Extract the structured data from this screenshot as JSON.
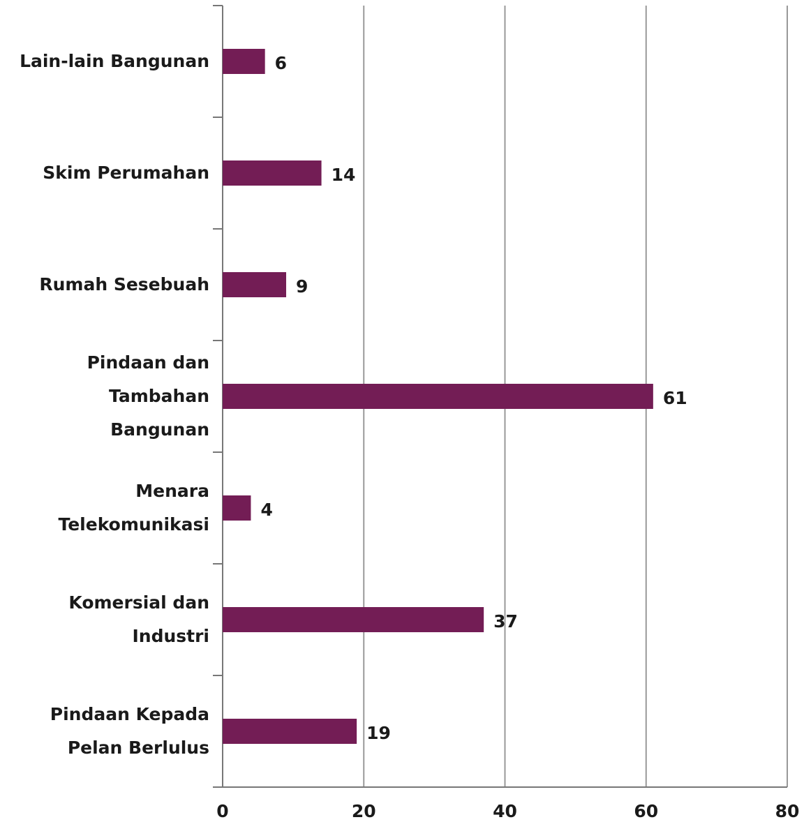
{
  "chart_data": {
    "type": "barh",
    "categories": [
      "Lain-lain Bangunan",
      "Skim Perumahan",
      "Rumah Sesebuah",
      "Pindaan dan Tambahan Bangunan",
      "Menara Telekomunikasi",
      "Komersial dan Industri",
      "Pindaan Kepada Pelan Berlulus"
    ],
    "values": [
      6,
      14,
      9,
      61,
      4,
      37,
      19
    ],
    "color": "#731d55",
    "xlim": [
      0,
      80
    ],
    "xticks": [
      0,
      20,
      40,
      60,
      80
    ],
    "grid": true
  }
}
